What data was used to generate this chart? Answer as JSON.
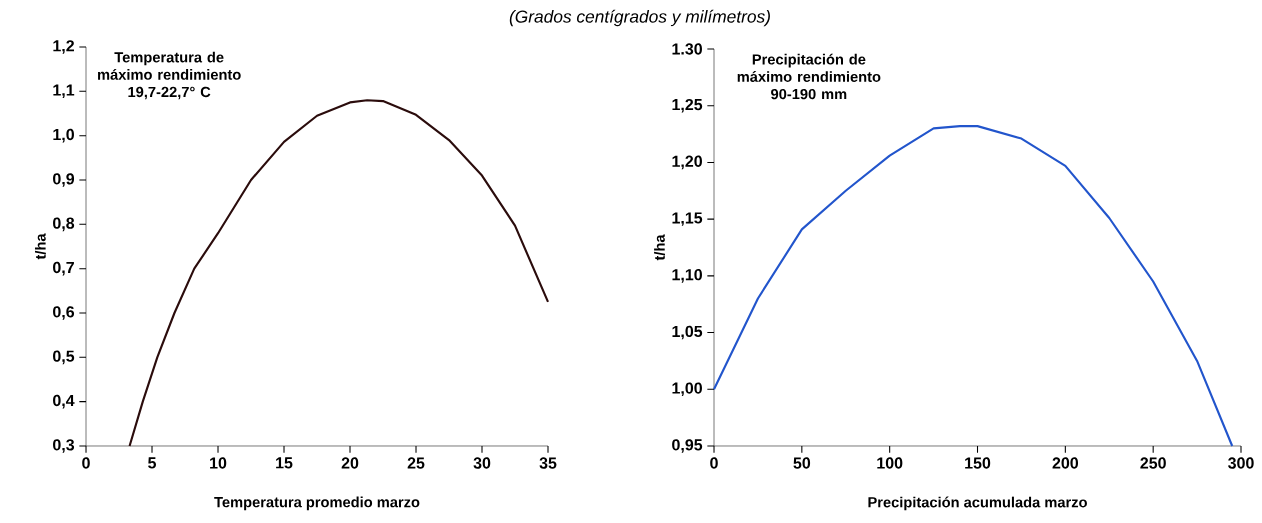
{
  "chart_data": [
    {
      "type": "line",
      "subtitle": "(Grados centígrados y milímetros)",
      "xlabel": "Temperatura promedio marzo",
      "ylabel": "t/ha",
      "annotations": [
        "Temperatura de máximo rendimiento 19,7-22,7° C"
      ],
      "series": [
        {
          "color": "#2b0c0c",
          "x": [
            3.3,
            4.3,
            5.4,
            6.7,
            8.2,
            10,
            12.5,
            15,
            17.5,
            20,
            21.3,
            22.5,
            25,
            27.5,
            30,
            32.5,
            35
          ],
          "values": [
            0.3,
            0.4,
            0.5,
            0.6,
            0.7,
            0.78,
            0.9,
            0.986,
            1.045,
            1.075,
            1.08,
            1.078,
            1.047,
            0.99,
            0.91,
            0.797,
            0.625
          ]
        }
      ],
      "xlim": [
        0,
        35
      ],
      "xticks": [
        0,
        5,
        10,
        15,
        20,
        25,
        30,
        35
      ],
      "ylim": [
        0.3,
        1.2
      ],
      "yticks": [
        {
          "value": 0.3,
          "label": "0,3"
        },
        {
          "value": 0.4,
          "label": "0,4"
        },
        {
          "value": 0.5,
          "label": "0,5"
        },
        {
          "value": 0.6,
          "label": "0,6"
        },
        {
          "value": 0.7,
          "label": "0,7"
        },
        {
          "value": 0.8,
          "label": "0,8"
        },
        {
          "value": 0.9,
          "label": "0,9"
        },
        {
          "value": 1.0,
          "label": "1,0"
        },
        {
          "value": 1.1,
          "label": "1,1"
        },
        {
          "value": 1.2,
          "label": "1,2"
        }
      ]
    },
    {
      "type": "line",
      "xlabel": "Precipitación acumulada marzo",
      "ylabel": "t/ha",
      "annotations": [
        "Precipitación de máximo rendimiento 90-190 mm"
      ],
      "series": [
        {
          "color": "#2255cc",
          "x": [
            0,
            25,
            50,
            75,
            100,
            125,
            140,
            150,
            175,
            200,
            225,
            250,
            275,
            295
          ],
          "values": [
            1.0,
            1.08,
            1.141,
            1.175,
            1.206,
            1.23,
            1.232,
            1.232,
            1.221,
            1.197,
            1.151,
            1.095,
            1.025,
            0.95
          ]
        }
      ],
      "xlim": [
        0,
        300
      ],
      "xticks": [
        0,
        50,
        100,
        150,
        200,
        250,
        300
      ],
      "ylim": [
        0.95,
        1.3
      ],
      "yticks": [
        {
          "value": 0.95,
          "label": "0,95"
        },
        {
          "value": 1.0,
          "label": "1,00"
        },
        {
          "value": 1.05,
          "label": "1,05"
        },
        {
          "value": 1.1,
          "label": "1,10"
        },
        {
          "value": 1.15,
          "label": "1,15"
        },
        {
          "value": 1.2,
          "label": "1,20"
        },
        {
          "value": 1.25,
          "label": "1,25"
        },
        {
          "value": 1.3,
          "label": "1.30"
        }
      ]
    }
  ]
}
